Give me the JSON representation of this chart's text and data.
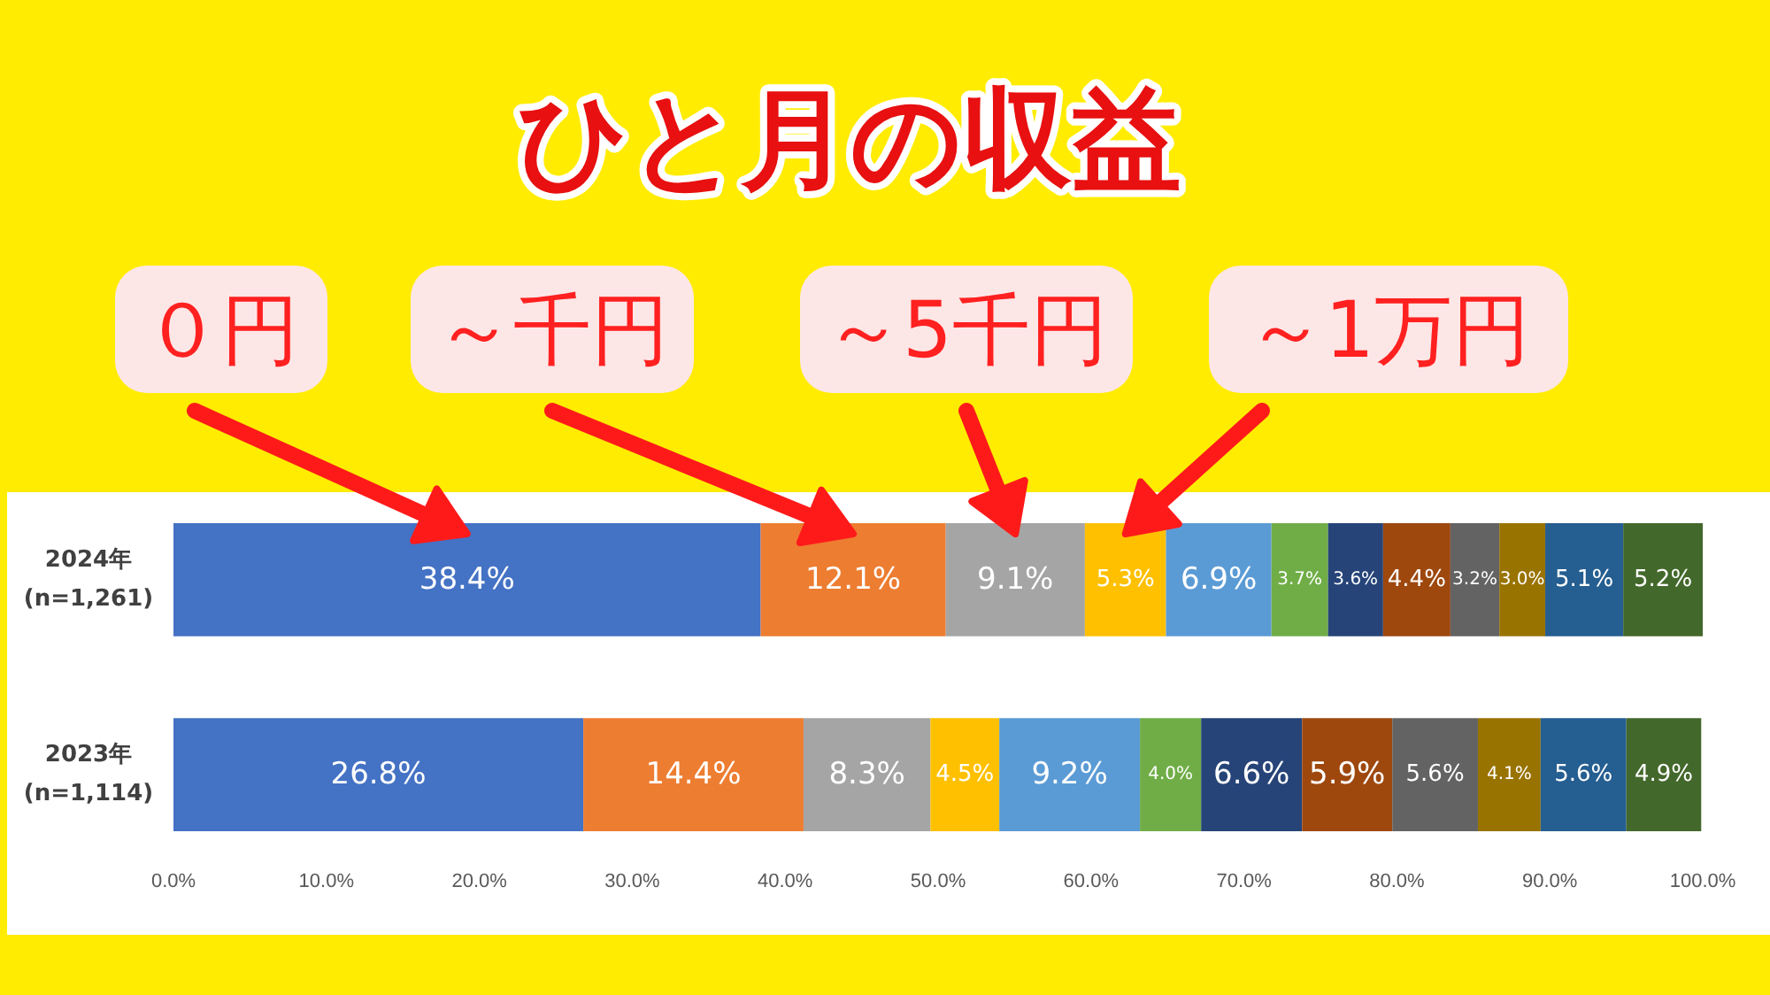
{
  "chart_data": {
    "type": "bar",
    "orientation": "horizontal",
    "stacked": true,
    "title": "ひと月の収益",
    "categories": [
      "2024年\n(n=1,261)",
      "2023年\n(n=1,114)"
    ],
    "series": [
      {
        "name": "０円",
        "color": "#4472c4",
        "values": [
          38.4,
          26.8
        ]
      },
      {
        "name": "～千円",
        "color": "#ed7d31",
        "values": [
          12.1,
          14.4
        ]
      },
      {
        "name": "～5千円",
        "color": "#a5a5a5",
        "values": [
          9.1,
          8.3
        ]
      },
      {
        "name": "～1万円",
        "color": "#ffc000",
        "values": [
          5.3,
          4.5
        ]
      },
      {
        "color": "#5b9bd5",
        "values": [
          6.9,
          9.2
        ]
      },
      {
        "color": "#70ad47",
        "values": [
          3.7,
          4.0
        ]
      },
      {
        "color": "#264478",
        "values": [
          3.6,
          6.6
        ]
      },
      {
        "color": "#9e480e",
        "values": [
          4.4,
          5.9
        ]
      },
      {
        "color": "#636363",
        "values": [
          3.2,
          5.6
        ]
      },
      {
        "color": "#997300",
        "values": [
          3.0,
          4.1
        ]
      },
      {
        "color": "#255e91",
        "values": [
          5.1,
          5.6
        ]
      },
      {
        "color": "#43682b",
        "values": [
          5.2,
          4.9
        ]
      }
    ],
    "value_labels": [
      [
        "38.4%",
        "26.8%"
      ],
      [
        "12.1%",
        "14.4%"
      ],
      [
        "9.1%",
        "8.3%"
      ],
      [
        "5.3%",
        "4.5%"
      ],
      [
        "6.9%",
        "9.2%"
      ],
      [
        "3.7%",
        "4.0%"
      ],
      [
        "3.6%",
        "6.6%"
      ],
      [
        "4.4%",
        "5.9%"
      ],
      [
        "3.2%",
        "5.6%"
      ],
      [
        "3.0%",
        "4.1%"
      ],
      [
        "5.1%",
        "5.6%"
      ],
      [
        "5.2%",
        "4.9%"
      ]
    ],
    "xlim": [
      0,
      100
    ],
    "xticks": [
      {
        "value": 0,
        "label": "0.0%"
      },
      {
        "value": 10,
        "label": "10.0%"
      },
      {
        "value": 20,
        "label": "20.0%"
      },
      {
        "value": 30,
        "label": "30.0%"
      },
      {
        "value": 40,
        "label": "40.0%"
      },
      {
        "value": 50,
        "label": "50.0%"
      },
      {
        "value": 60,
        "label": "60.0%"
      },
      {
        "value": 70,
        "label": "70.0%"
      },
      {
        "value": 80,
        "label": "80.0%"
      },
      {
        "value": 90,
        "label": "90.0%"
      },
      {
        "value": 100,
        "label": "100.0%"
      }
    ],
    "grid": false,
    "legend": "top"
  }
}
